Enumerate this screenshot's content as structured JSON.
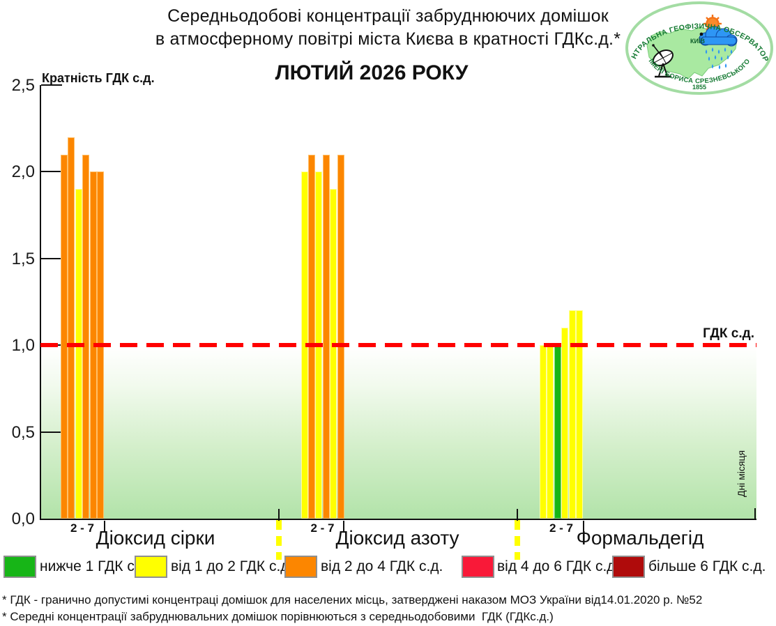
{
  "title": {
    "line1": "Середньодобові концентрації забруднюючих домішок",
    "line2": "в атмосферному повітрі міста Києва в кратності ГДКс.д.*",
    "month": "ЛЮТИЙ 2026 РОКУ"
  },
  "logo": {
    "top_text": "ЦЕНТРАЛЬНА ГЕОФІЗИЧНА ОБСЕРВАТОРІЯ",
    "bottom_text": "ІМЕНІ БОРИСА СРЕЗНЕВСЬКОГО",
    "year": "1855",
    "city": "КИЇВ"
  },
  "chart_data": {
    "type": "bar",
    "title": "ЛЮТИЙ 2026 РОКУ",
    "ylabel": "Кратність ГДК с.д.",
    "days_axis_label": "Дні місяця",
    "ylim": [
      0,
      2.5
    ],
    "grid": false,
    "yticks": [
      {
        "label": "2,5",
        "value": 2.5
      },
      {
        "label": "2,0",
        "value": 2.0
      },
      {
        "label": "1,5",
        "value": 1.5
      },
      {
        "label": "1,0",
        "value": 1.0
      },
      {
        "label": "0,5",
        "value": 0.5
      },
      {
        "label": "0,0",
        "value": 0.0
      }
    ],
    "reference_line": {
      "value": 1.0,
      "label": "ГДК с.д.",
      "color": "#FF0000"
    },
    "groups": [
      {
        "name": "Діоксид сірки",
        "days_label": "2 - 7",
        "values": [
          2.1,
          2.2,
          1.9,
          2.1,
          2.0,
          2.0
        ],
        "colors": [
          "orange",
          "orange",
          "yellow",
          "orange",
          "orange",
          "orange"
        ]
      },
      {
        "name": "Діоксид азоту",
        "days_label": "2 - 7",
        "values": [
          2.0,
          2.1,
          2.0,
          2.1,
          1.9,
          2.1
        ],
        "colors": [
          "yellow",
          "orange",
          "yellow",
          "orange",
          "yellow",
          "orange"
        ]
      },
      {
        "name": "Формальдегід",
        "days_label": "2 - 7",
        "values": [
          1.0,
          1.0,
          1.0,
          1.1,
          1.2,
          1.2
        ],
        "colors": [
          "yellow",
          "yellow",
          "green",
          "yellow",
          "yellow",
          "yellow"
        ]
      }
    ],
    "palette": {
      "green": "#17B517",
      "yellow": "#FFFF00",
      "orange": "#FC8600",
      "red": "#F91938",
      "darkred": "#AF0B0B"
    }
  },
  "legend": {
    "items": [
      {
        "color": "green",
        "label": "нижче 1 ГДК с.д."
      },
      {
        "color": "yellow",
        "label": "від 1 до 2 ГДК с.д."
      },
      {
        "color": "orange",
        "label": "від 2 до 4 ГДК с.д."
      },
      {
        "color": "red",
        "label": "від 4 до 6 ГДК с.д."
      },
      {
        "color": "darkred",
        "label": "більше 6 ГДК с.д."
      }
    ]
  },
  "footnotes": [
    "* ГДК - гранично допустимі концентраці домішок для населених місць, затверджені наказом МОЗ України від14.01.2020 р. №52",
    "* Середні концентрації забруднювальних домішок порівнюються з середньодобовими  ГДК (ГДКс.д.)"
  ]
}
